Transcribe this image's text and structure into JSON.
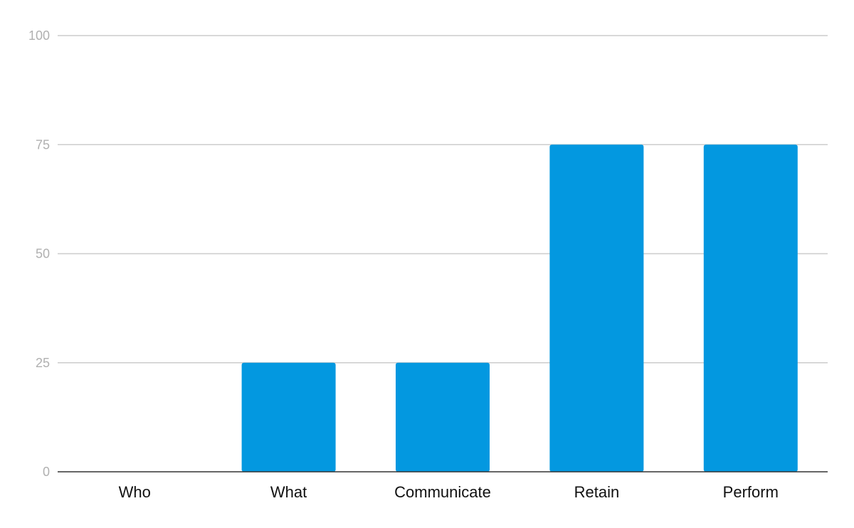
{
  "chart_data": {
    "type": "bar",
    "categories": [
      "Who",
      "What",
      "Communicate",
      "Retain",
      "Perform"
    ],
    "values": [
      0,
      25,
      25,
      75,
      75
    ],
    "ylim": [
      0,
      100
    ],
    "yticks": [
      0,
      25,
      50,
      75,
      100
    ],
    "grid": true,
    "legend": "none",
    "title": "",
    "xlabel": "",
    "ylabel": ""
  },
  "colors": {
    "bar": "#0398e0"
  }
}
